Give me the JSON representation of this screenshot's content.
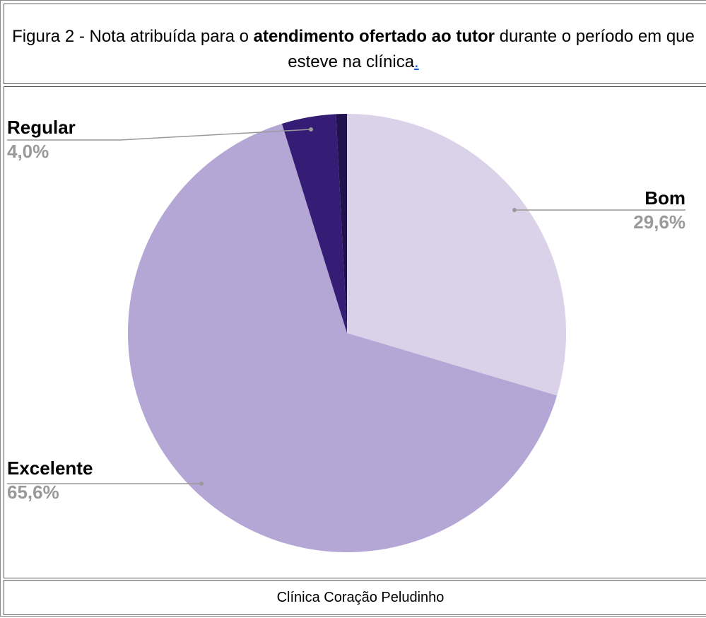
{
  "title": [
    "Figura 2 - Nota atribuída para o ",
    "atendimento ofertado ao tutor",
    " durante o período em que esteve na clínica",
    "."
  ],
  "chart_data": {
    "type": "pie",
    "categories": [
      "Bom",
      "Excelente",
      "Regular",
      null
    ],
    "values": [
      29.6,
      65.6,
      4.0,
      0.8
    ],
    "value_labels": [
      "29,6%",
      "65,6%",
      "4,0%",
      null
    ],
    "colors": [
      "#d9d2e9",
      "#b4a7d6",
      "#351c75",
      "#20124d"
    ]
  },
  "caption": "Clínica Coração Peludinho"
}
